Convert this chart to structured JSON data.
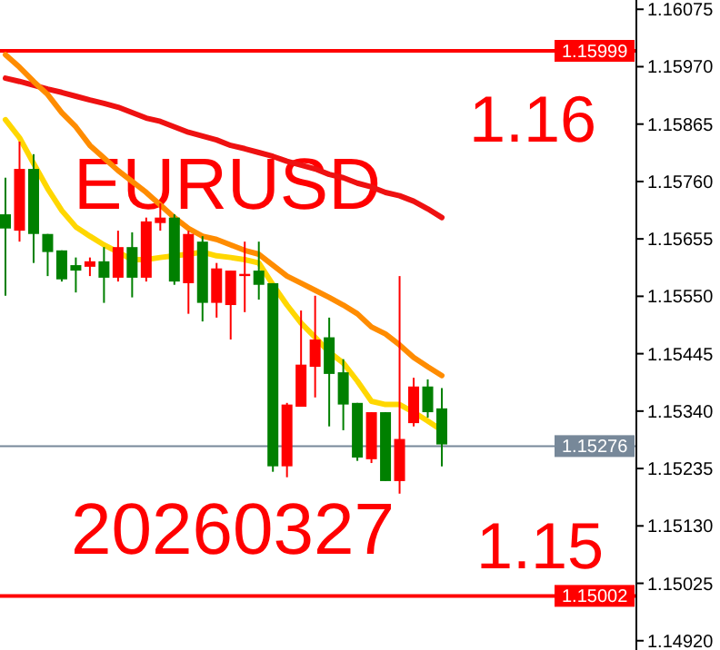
{
  "chart_data": {
    "type": "candlestick",
    "categories": [
      null,
      null,
      null,
      null,
      null,
      null,
      null,
      null,
      null,
      null,
      null,
      null,
      null,
      null,
      null,
      null,
      null,
      null,
      null,
      null,
      null,
      null,
      null,
      null,
      null,
      null,
      null,
      null,
      null,
      null,
      null,
      null
    ],
    "ohlc": [
      [
        1.15674,
        1.15767,
        1.15551,
        1.157
      ],
      [
        1.15783,
        1.15833,
        1.1565,
        1.1567
      ],
      [
        1.15664,
        1.1581,
        1.15611,
        1.15783
      ],
      [
        1.15631,
        1.15664,
        1.15587,
        1.15664
      ],
      [
        1.15581,
        1.15634,
        1.15577,
        1.15634
      ],
      [
        1.15597,
        1.15621,
        1.15557,
        1.15607
      ],
      [
        1.15614,
        1.15621,
        1.15587,
        1.15604
      ],
      [
        1.15584,
        1.1564,
        1.15538,
        1.15614
      ],
      [
        1.1564,
        1.1567,
        1.15577,
        1.15584
      ],
      [
        1.15584,
        1.15667,
        1.15548,
        1.1564
      ],
      [
        1.15687,
        1.15694,
        1.15577,
        1.15584
      ],
      [
        1.15694,
        1.1572,
        1.1567,
        1.15684
      ],
      [
        1.15577,
        1.157,
        1.15571,
        1.15694
      ],
      [
        1.15664,
        1.1567,
        1.15518,
        1.15574
      ],
      [
        1.15538,
        1.1566,
        1.15504,
        1.1565
      ],
      [
        1.15601,
        1.15611,
        1.15511,
        1.15538
      ],
      [
        1.15597,
        1.15597,
        1.15471,
        1.15534
      ],
      [
        1.15591,
        1.1565,
        1.15521,
        1.15587
      ],
      [
        1.15571,
        1.1565,
        1.15544,
        1.15597
      ],
      [
        1.15239,
        1.15574,
        1.15229,
        1.15574
      ],
      [
        1.15352,
        1.15355,
        1.15219,
        1.15239
      ],
      [
        1.15425,
        1.15524,
        1.15348,
        1.15348
      ],
      [
        1.15471,
        1.15551,
        1.15365,
        1.15421
      ],
      [
        1.15408,
        1.15511,
        1.15312,
        1.15475
      ],
      [
        1.15352,
        1.15435,
        1.15305,
        1.15411
      ],
      [
        1.15255,
        1.15355,
        1.15249,
        1.15355
      ],
      [
        1.15338,
        1.15338,
        1.15245,
        1.15252
      ],
      [
        1.15212,
        1.15338,
        1.15212,
        1.15338
      ],
      [
        1.15289,
        1.15587,
        1.15189,
        1.15212
      ],
      [
        1.15385,
        1.15401,
        1.15312,
        1.15318
      ],
      [
        1.15338,
        1.15398,
        1.15328,
        1.15385
      ],
      [
        1.15279,
        1.15382,
        1.15239,
        1.15345
      ]
    ],
    "series": [
      {
        "type": "line",
        "color": "#ee1111",
        "values": [
          1.15949,
          1.15943,
          1.15936,
          1.15929,
          1.15923,
          1.15916,
          1.15909,
          1.15903,
          1.15896,
          1.15886,
          1.15876,
          1.1587,
          1.1586,
          1.1585,
          1.15843,
          1.15836,
          1.15826,
          1.1582,
          1.15813,
          1.15806,
          1.15797,
          1.1579,
          1.15783,
          1.15773,
          1.15767,
          1.15757,
          1.1575,
          1.1574,
          1.15734,
          1.15724,
          1.1571,
          1.15694
        ]
      },
      {
        "type": "line",
        "color": "#ff8c00",
        "values": [
          1.15992,
          1.15969,
          1.15943,
          1.15919,
          1.15886,
          1.1586,
          1.15826,
          1.15803,
          1.1578,
          1.1576,
          1.1574,
          1.15717,
          1.15694,
          1.15674,
          1.1566,
          1.15654,
          1.15644,
          1.15634,
          1.15627,
          1.15607,
          1.15587,
          1.15574,
          1.15561,
          1.15548,
          1.15534,
          1.15518,
          1.15494,
          1.15481,
          1.15461,
          1.15438,
          1.15421,
          1.15405
        ]
      },
      {
        "type": "line",
        "color": "#ffd700",
        "values": [
          1.15873,
          1.1584,
          1.15793,
          1.15747,
          1.15707,
          1.15677,
          1.1566,
          1.15644,
          1.15631,
          1.15617,
          1.15617,
          1.15621,
          1.15624,
          1.15627,
          1.15631,
          1.15624,
          1.15621,
          1.15617,
          1.15611,
          1.15571,
          1.15534,
          1.15501,
          1.15475,
          1.15448,
          1.15428,
          1.15395,
          1.15358,
          1.15352,
          1.15352,
          1.15338,
          1.15322,
          1.15305
        ]
      }
    ],
    "ylim": [
      1.14903,
      1.16092
    ],
    "yticks": [
      1.16075,
      {
        "value": 1.1597,
        "label": "1.15970"
      },
      1.15865,
      {
        "value": 1.1576,
        "label": "1.15760"
      },
      1.15655,
      {
        "value": 1.1555,
        "label": "1.15550"
      },
      1.15445,
      {
        "value": 1.1534,
        "label": "1.15340"
      },
      1.15235,
      {
        "value": 1.1513,
        "label": "1.15130"
      },
      1.15025,
      {
        "value": 1.1492,
        "label": "1.14920"
      }
    ],
    "ref_lines": [
      {
        "axis": "y",
        "value": 1.15999,
        "label": "1.15999",
        "color": "#ff0000"
      },
      {
        "axis": "y",
        "value": 1.15002,
        "label": "1.15002",
        "color": "#ff0000"
      },
      {
        "axis": "y",
        "value": 1.15276,
        "label": "1.15276",
        "color": "#778899"
      }
    ],
    "annotations": [
      "EURUSD",
      "1.16",
      "20260327",
      "1.15"
    ],
    "grid": false
  }
}
